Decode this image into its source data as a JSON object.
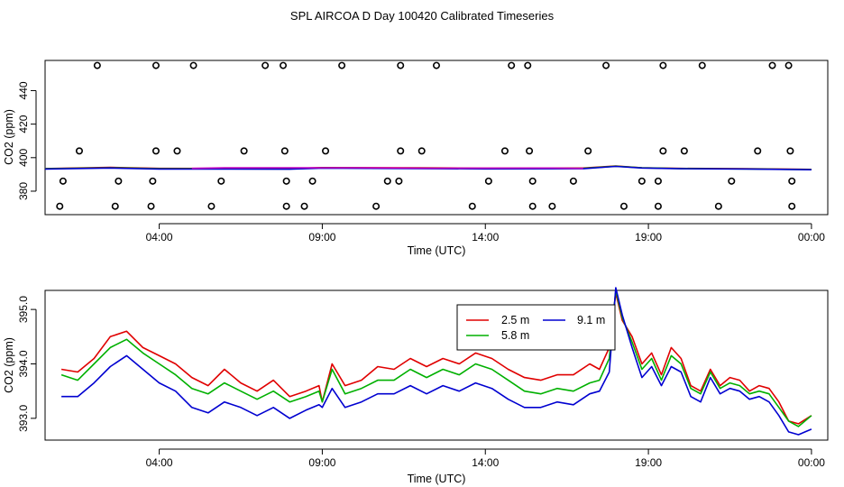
{
  "figure": {
    "title": "SPL AIRCOA D  Day 100420  Calibrated Timeseries"
  },
  "chart_data": [
    {
      "type": "scatter",
      "name": "top-panel",
      "xlabel": "Time (UTC)",
      "ylabel": "CO2 (ppm)",
      "xlim": [
        0.5,
        24.5
      ],
      "ylim": [
        366,
        458
      ],
      "xticks": [
        {
          "value": 4,
          "label": "04:00"
        },
        {
          "value": 9,
          "label": "09:00"
        },
        {
          "value": 14,
          "label": "14:00"
        },
        {
          "value": 19,
          "label": "19:00"
        },
        {
          "value": 24,
          "label": "00:00"
        }
      ],
      "yticks": [
        380,
        400,
        420,
        440
      ],
      "markers": [
        {
          "x": 2.1,
          "y": 455
        },
        {
          "x": 3.9,
          "y": 455
        },
        {
          "x": 5.05,
          "y": 455
        },
        {
          "x": 7.25,
          "y": 455
        },
        {
          "x": 7.8,
          "y": 455
        },
        {
          "x": 9.6,
          "y": 455
        },
        {
          "x": 11.4,
          "y": 455
        },
        {
          "x": 12.5,
          "y": 455
        },
        {
          "x": 14.8,
          "y": 455
        },
        {
          "x": 15.3,
          "y": 455
        },
        {
          "x": 17.7,
          "y": 455
        },
        {
          "x": 19.45,
          "y": 455
        },
        {
          "x": 20.65,
          "y": 455
        },
        {
          "x": 22.8,
          "y": 455
        },
        {
          "x": 23.3,
          "y": 455
        },
        {
          "x": 1.55,
          "y": 404
        },
        {
          "x": 3.9,
          "y": 404
        },
        {
          "x": 4.55,
          "y": 404
        },
        {
          "x": 6.6,
          "y": 404
        },
        {
          "x": 7.85,
          "y": 404
        },
        {
          "x": 9.1,
          "y": 404
        },
        {
          "x": 11.4,
          "y": 404
        },
        {
          "x": 12.05,
          "y": 404
        },
        {
          "x": 14.6,
          "y": 404
        },
        {
          "x": 15.35,
          "y": 404
        },
        {
          "x": 17.15,
          "y": 404
        },
        {
          "x": 19.45,
          "y": 404
        },
        {
          "x": 20.1,
          "y": 404
        },
        {
          "x": 22.35,
          "y": 404
        },
        {
          "x": 23.35,
          "y": 404
        },
        {
          "x": 1.05,
          "y": 386
        },
        {
          "x": 2.75,
          "y": 386
        },
        {
          "x": 3.8,
          "y": 386
        },
        {
          "x": 5.9,
          "y": 386
        },
        {
          "x": 7.9,
          "y": 386
        },
        {
          "x": 8.7,
          "y": 386
        },
        {
          "x": 11.0,
          "y": 386
        },
        {
          "x": 11.35,
          "y": 386
        },
        {
          "x": 14.1,
          "y": 386
        },
        {
          "x": 15.45,
          "y": 386
        },
        {
          "x": 16.7,
          "y": 386
        },
        {
          "x": 18.8,
          "y": 386
        },
        {
          "x": 19.3,
          "y": 386
        },
        {
          "x": 21.55,
          "y": 386
        },
        {
          "x": 23.4,
          "y": 386
        },
        {
          "x": 0.95,
          "y": 371
        },
        {
          "x": 2.65,
          "y": 371
        },
        {
          "x": 3.75,
          "y": 371
        },
        {
          "x": 5.6,
          "y": 371
        },
        {
          "x": 7.9,
          "y": 371
        },
        {
          "x": 8.45,
          "y": 371
        },
        {
          "x": 10.65,
          "y": 371
        },
        {
          "x": 13.6,
          "y": 371
        },
        {
          "x": 15.45,
          "y": 371
        },
        {
          "x": 16.05,
          "y": 371
        },
        {
          "x": 18.25,
          "y": 371
        },
        {
          "x": 19.3,
          "y": 371
        },
        {
          "x": 21.15,
          "y": 371
        },
        {
          "x": 23.4,
          "y": 371
        }
      ],
      "series": [
        {
          "name": "2.5 m",
          "color": "#e00000",
          "x": [
            0.5,
            2.5,
            4.0,
            8.0,
            9.0,
            12.0,
            14.0,
            17.0,
            18.0,
            18.8,
            20.0,
            22.0,
            24.0
          ],
          "y": [
            393.5,
            394.2,
            393.6,
            393.5,
            394.1,
            393.9,
            393.7,
            393.8,
            395.0,
            394.0,
            393.6,
            393.4,
            393.0
          ]
        },
        {
          "name": "5.8 m",
          "color": "#00b000",
          "x": [
            0.5,
            2.5,
            4.0,
            8.0,
            9.0,
            12.0,
            14.0,
            17.0,
            18.0,
            18.8,
            20.0,
            22.0,
            24.0
          ],
          "y": [
            393.4,
            394.0,
            393.4,
            393.3,
            393.9,
            393.7,
            393.5,
            393.6,
            394.9,
            393.9,
            393.5,
            393.3,
            392.9
          ]
        },
        {
          "name": "9.1 m",
          "color": "#0000d0",
          "x": [
            0.5,
            2.5,
            4.0,
            8.0,
            9.0,
            12.0,
            14.0,
            17.0,
            18.0,
            18.8,
            20.0,
            22.0,
            24.0
          ],
          "y": [
            393.2,
            393.8,
            393.2,
            393.1,
            393.7,
            393.5,
            393.3,
            393.4,
            394.8,
            393.8,
            393.4,
            393.2,
            392.8
          ]
        },
        {
          "name": "magenta",
          "color": "#c000c0",
          "x": [
            5.0,
            6.0,
            10.0,
            12.5,
            16.0,
            17.0
          ],
          "y": [
            393.6,
            393.9,
            394.0,
            393.7,
            393.8,
            393.6
          ]
        }
      ]
    },
    {
      "type": "line",
      "name": "bottom-panel",
      "xlabel": "Time (UTC)",
      "ylabel": "CO2 (ppm)",
      "xlim": [
        0.5,
        24.5
      ],
      "ylim": [
        392.6,
        395.35
      ],
      "xticks": [
        {
          "value": 4,
          "label": "04:00"
        },
        {
          "value": 9,
          "label": "09:00"
        },
        {
          "value": 14,
          "label": "14:00"
        },
        {
          "value": 19,
          "label": "19:00"
        },
        {
          "value": 24,
          "label": "00:00"
        }
      ],
      "yticks": [
        {
          "value": 393.0,
          "label": "393.0"
        },
        {
          "value": 394.0,
          "label": "394.0"
        },
        {
          "value": 395.0,
          "label": "395.0"
        }
      ],
      "legend": {
        "position": "top-center",
        "entries": [
          "2.5 m",
          "9.1 m",
          "5.8 m"
        ]
      },
      "x": [
        1.0,
        1.5,
        2.0,
        2.5,
        3.0,
        3.5,
        4.0,
        4.5,
        5.0,
        5.5,
        6.0,
        6.5,
        7.0,
        7.5,
        8.0,
        8.5,
        8.9,
        9.0,
        9.3,
        9.7,
        10.2,
        10.7,
        11.2,
        11.7,
        12.2,
        12.7,
        13.2,
        13.7,
        14.2,
        14.7,
        15.2,
        15.7,
        16.2,
        16.7,
        17.2,
        17.5,
        17.8,
        18.0,
        18.2,
        18.5,
        18.8,
        19.1,
        19.4,
        19.7,
        20.0,
        20.3,
        20.6,
        20.9,
        21.2,
        21.5,
        21.8,
        22.1,
        22.4,
        22.7,
        23.0,
        23.3,
        23.6,
        24.0
      ],
      "series": [
        {
          "name": "2.5 m",
          "color": "#e00000",
          "values": [
            393.9,
            393.85,
            394.1,
            394.5,
            394.6,
            394.3,
            394.15,
            394.0,
            393.75,
            393.6,
            393.9,
            393.65,
            393.5,
            393.7,
            393.4,
            393.5,
            393.6,
            393.3,
            394.0,
            393.6,
            393.7,
            393.95,
            393.9,
            394.1,
            393.95,
            394.1,
            394.0,
            394.2,
            394.1,
            393.9,
            393.75,
            393.7,
            393.8,
            393.8,
            394.0,
            393.9,
            394.3,
            395.3,
            394.8,
            394.5,
            394.0,
            394.2,
            393.8,
            394.3,
            394.1,
            393.6,
            393.5,
            393.9,
            393.6,
            393.75,
            393.7,
            393.5,
            393.6,
            393.55,
            393.3,
            392.95,
            392.9,
            393.05
          ]
        },
        {
          "name": "5.8 m",
          "color": "#00b000",
          "values": [
            393.8,
            393.7,
            394.0,
            394.3,
            394.45,
            394.2,
            394.0,
            393.8,
            393.55,
            393.45,
            393.65,
            393.5,
            393.35,
            393.5,
            393.3,
            393.4,
            393.5,
            393.3,
            393.9,
            393.45,
            393.55,
            393.7,
            393.7,
            393.9,
            393.75,
            393.9,
            393.8,
            394.0,
            393.9,
            393.7,
            393.5,
            393.45,
            393.55,
            393.5,
            393.65,
            393.7,
            394.1,
            395.35,
            394.85,
            394.4,
            393.9,
            394.1,
            393.7,
            394.15,
            394.0,
            393.55,
            393.45,
            393.85,
            393.55,
            393.65,
            393.6,
            393.45,
            393.5,
            393.45,
            393.2,
            392.95,
            392.85,
            393.05
          ]
        },
        {
          "name": "9.1 m",
          "color": "#0000d0",
          "values": [
            393.4,
            393.4,
            393.65,
            393.95,
            394.15,
            393.9,
            393.65,
            393.5,
            393.2,
            393.1,
            393.3,
            393.2,
            393.05,
            393.2,
            393.0,
            393.15,
            393.25,
            393.2,
            393.55,
            393.2,
            393.3,
            393.45,
            393.45,
            393.6,
            393.45,
            393.6,
            393.5,
            393.65,
            393.55,
            393.35,
            393.2,
            393.2,
            393.3,
            393.25,
            393.45,
            393.5,
            393.85,
            395.4,
            394.9,
            394.3,
            393.75,
            393.95,
            393.6,
            393.95,
            393.85,
            393.4,
            393.3,
            393.75,
            393.45,
            393.55,
            393.5,
            393.35,
            393.4,
            393.3,
            393.05,
            392.75,
            392.7,
            392.8
          ]
        }
      ]
    }
  ]
}
